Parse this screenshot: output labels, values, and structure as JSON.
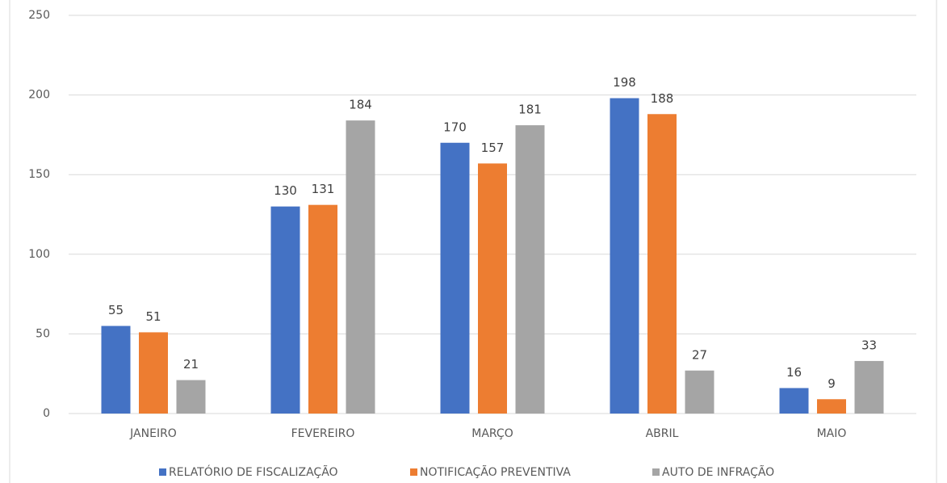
{
  "chart_data": {
    "type": "bar",
    "categories": [
      "JANEIRO",
      "FEVEREIRO",
      "MARÇO",
      "ABRIL",
      "MAIO"
    ],
    "series": [
      {
        "name": "RELATÓRIO DE FISCALIZAÇÃO",
        "color": "#4472c4",
        "values": [
          55,
          130,
          170,
          198,
          16
        ]
      },
      {
        "name": "NOTIFICAÇÃO PREVENTIVA",
        "color": "#ed7d31",
        "values": [
          51,
          131,
          157,
          188,
          9
        ]
      },
      {
        "name": "AUTO DE INFRAÇÃO",
        "color": "#a5a5a5",
        "values": [
          21,
          184,
          181,
          27,
          33
        ]
      }
    ],
    "ylim": [
      0,
      250
    ],
    "yticks": [
      0,
      50,
      100,
      150,
      200,
      250
    ],
    "grid": true,
    "legend": "bottom"
  }
}
